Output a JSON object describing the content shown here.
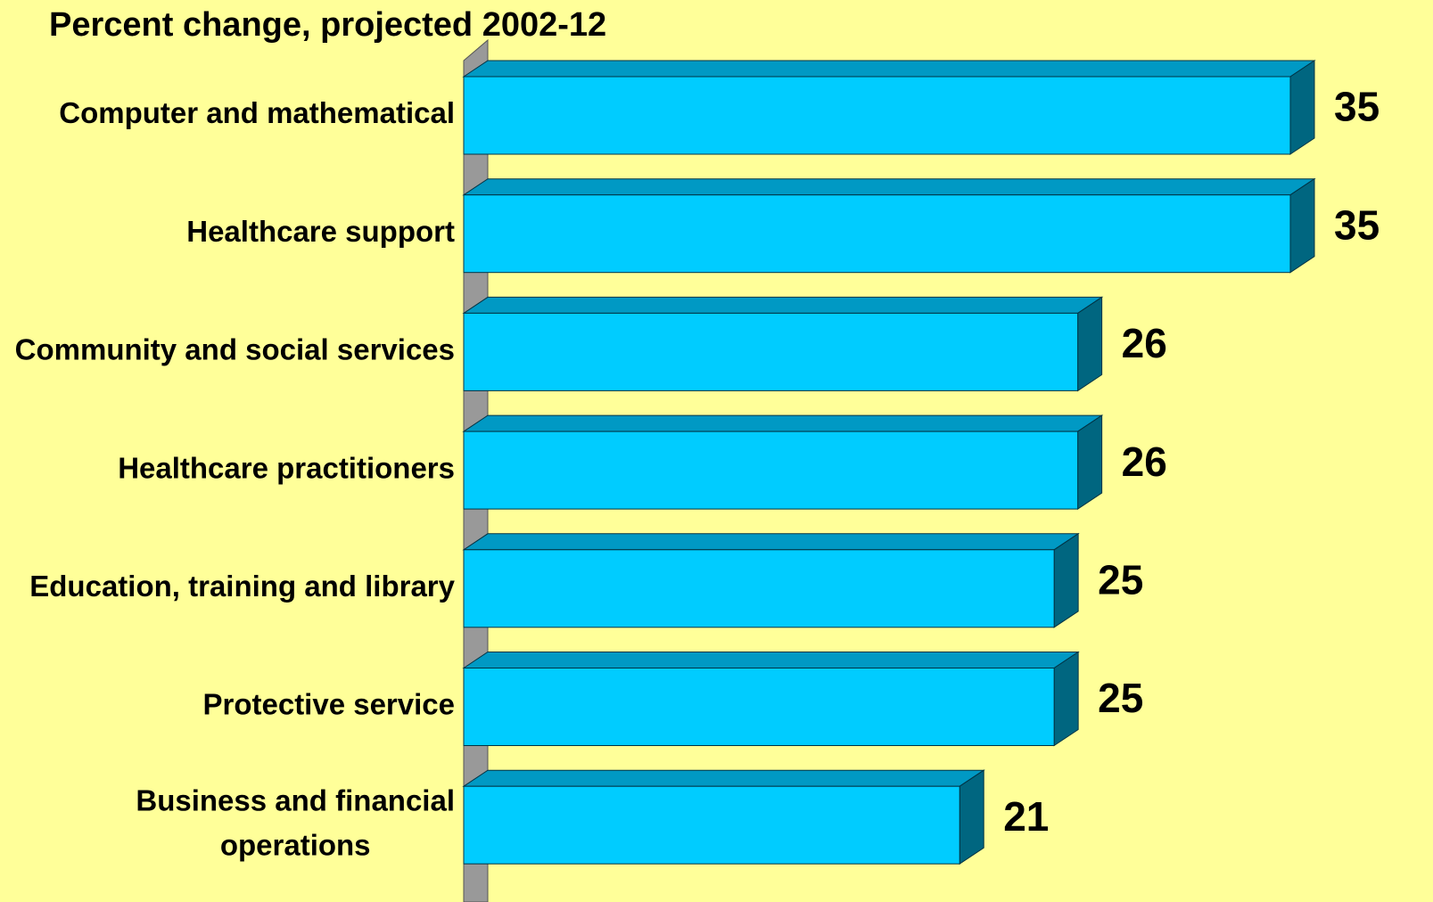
{
  "chart_data": {
    "type": "bar3d_horizontal",
    "title": "Percent change, projected 2002-12",
    "categories": [
      "Computer and mathematical",
      "Healthcare support",
      "Community and social services",
      "Healthcare practitioners",
      "Education, training and library",
      "Protective service",
      "Business and financial operations"
    ],
    "values": [
      35,
      35,
      26,
      26,
      25,
      25,
      21
    ],
    "color": "#00ccff",
    "top_color": "#0099c4",
    "side_color": "#006680",
    "wall_color": "#999999"
  }
}
